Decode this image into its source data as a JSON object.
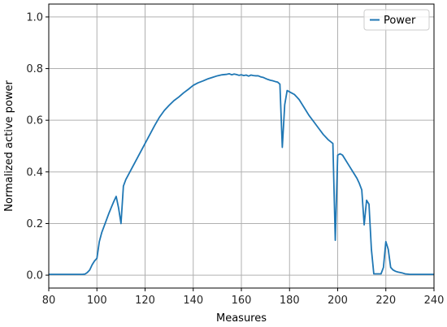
{
  "chart_data": {
    "type": "line",
    "xlabel": "Measures",
    "ylabel": "Normalized active power",
    "xlim": [
      80,
      240
    ],
    "ylim": [
      -0.05,
      1.05
    ],
    "xticks": [
      80,
      100,
      120,
      140,
      160,
      180,
      200,
      220,
      240
    ],
    "yticks": [
      0.0,
      0.2,
      0.4,
      0.6,
      0.8,
      1.0
    ],
    "xtick_labels": [
      "80",
      "100",
      "120",
      "140",
      "160",
      "180",
      "200",
      "220",
      "240"
    ],
    "ytick_labels": [
      "0.0",
      "0.2",
      "0.4",
      "0.6",
      "0.8",
      "1.0"
    ],
    "grid": true,
    "legend_position": "top-right",
    "series": [
      {
        "name": "Power",
        "color": "#1f77b4",
        "x": [
          80,
          94,
          95,
          96,
          97,
          98,
          99,
          100,
          101,
          102,
          103,
          104,
          105,
          106,
          107,
          108,
          109,
          110,
          111,
          112,
          114,
          116,
          118,
          120,
          122,
          124,
          126,
          128,
          130,
          132,
          134,
          136,
          138,
          140,
          142,
          144,
          146,
          148,
          150,
          152,
          154,
          155,
          156,
          157,
          158,
          159,
          160,
          161,
          162,
          163,
          164,
          165,
          166,
          167,
          168,
          169,
          170,
          171,
          172,
          173,
          174,
          175,
          176,
          177,
          178,
          179,
          180,
          181,
          182,
          183,
          184,
          186,
          188,
          190,
          192,
          194,
          196,
          198,
          199,
          200,
          201,
          202,
          203,
          204,
          205,
          206,
          207,
          208,
          209,
          210,
          211,
          212,
          213,
          214,
          215,
          216,
          217,
          218,
          219,
          220,
          221,
          222,
          223,
          224,
          225,
          226,
          227,
          228,
          230,
          240
        ],
        "y": [
          0.003,
          0.003,
          0.004,
          0.01,
          0.02,
          0.04,
          0.055,
          0.065,
          0.13,
          0.165,
          0.19,
          0.215,
          0.24,
          0.263,
          0.285,
          0.305,
          0.26,
          0.2,
          0.345,
          0.37,
          0.405,
          0.44,
          0.475,
          0.51,
          0.545,
          0.58,
          0.612,
          0.638,
          0.658,
          0.676,
          0.69,
          0.706,
          0.72,
          0.735,
          0.745,
          0.752,
          0.76,
          0.766,
          0.772,
          0.776,
          0.778,
          0.78,
          0.776,
          0.779,
          0.777,
          0.774,
          0.776,
          0.773,
          0.775,
          0.771,
          0.775,
          0.773,
          0.772,
          0.772,
          0.768,
          0.766,
          0.762,
          0.758,
          0.755,
          0.753,
          0.75,
          0.748,
          0.74,
          0.495,
          0.66,
          0.715,
          0.71,
          0.705,
          0.7,
          0.69,
          0.68,
          0.65,
          0.62,
          0.595,
          0.57,
          0.545,
          0.525,
          0.51,
          0.135,
          0.465,
          0.47,
          0.465,
          0.45,
          0.435,
          0.42,
          0.405,
          0.39,
          0.375,
          0.355,
          0.33,
          0.195,
          0.29,
          0.275,
          0.1,
          0.005,
          0.005,
          0.005,
          0.005,
          0.03,
          0.13,
          0.1,
          0.03,
          0.02,
          0.015,
          0.012,
          0.01,
          0.008,
          0.005,
          0.003,
          0.003
        ]
      }
    ]
  }
}
